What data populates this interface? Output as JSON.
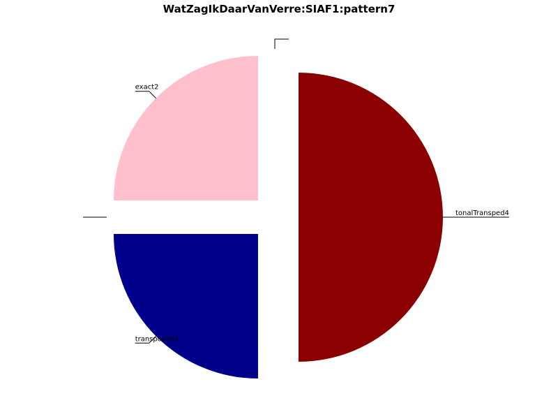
{
  "chart_data": {
    "type": "pie",
    "title": "WatZagIkDaarVanVerre:SIAF1:pattern7",
    "categories": [
      "exact2",
      "",
      "transposed4",
      "tonalTransped4",
      ""
    ],
    "values": [
      1,
      0,
      1,
      2,
      0
    ],
    "colors": [
      "#ffc0cb",
      "#ffffff",
      "#00008b",
      "#8b0000",
      "#ffffff"
    ],
    "legend": "none",
    "grid": false
  }
}
